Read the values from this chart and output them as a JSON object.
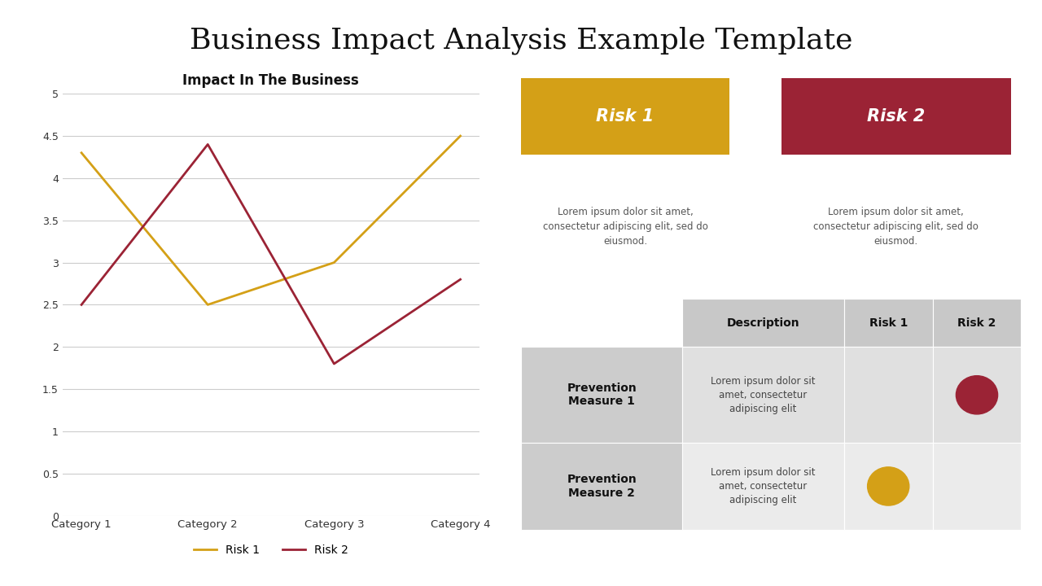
{
  "title": "Business Impact Analysis Example Template",
  "title_fontsize": 26,
  "background_color": "#ffffff",
  "chart_title": "Impact In The Business",
  "categories": [
    "Category 1",
    "Category 2",
    "Category 3",
    "Category 4"
  ],
  "risk1_values": [
    4.3,
    2.5,
    3.0,
    4.5
  ],
  "risk2_values": [
    2.5,
    4.4,
    1.8,
    2.8
  ],
  "risk1_color": "#D4A017",
  "risk2_color": "#9B2335",
  "ylim": [
    0,
    5
  ],
  "yticks": [
    0,
    0.5,
    1,
    1.5,
    2,
    2.5,
    3,
    3.5,
    4,
    4.5,
    5
  ],
  "risk1_label": "Risk 1",
  "risk2_label": "Risk 2",
  "risk1_header_color": "#D4A017",
  "risk2_header_color": "#9B2335",
  "risk1_header_text": "Risk 1",
  "risk2_header_text": "Risk 2",
  "risk_description_text": "Lorem ipsum dolor sit amet,\nconsectetur adipiscing elit, sed do\neiusmod.",
  "table_header_bg": "#c8c8c8",
  "table_row1_bg": "#e0e0e0",
  "table_row2_bg": "#ebebeb",
  "table_col_measure_bg": "#cccccc",
  "table_col_headers": [
    "Description",
    "Risk 1",
    "Risk 2"
  ],
  "table_row_labels": [
    "Prevention\nMeasure 1",
    "Prevention\nMeasure 2"
  ],
  "table_desc_text": "Lorem ipsum dolor sit\namet, consectetur\nadipiscing elit",
  "dot_risk2_row1_color": "#9B2335",
  "dot_risk1_row2_color": "#D4A017"
}
